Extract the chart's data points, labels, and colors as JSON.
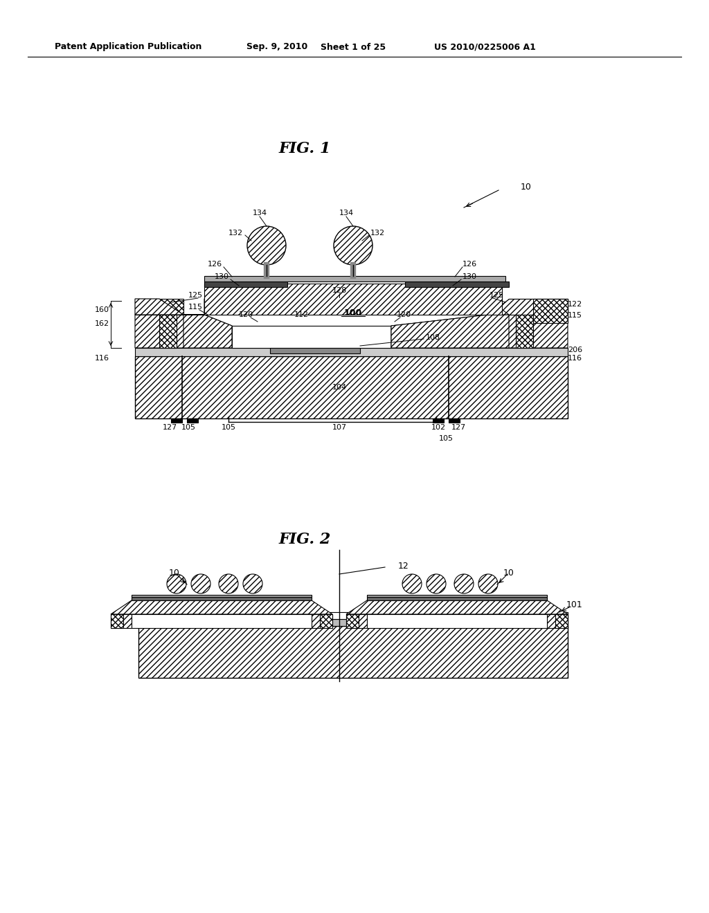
{
  "background_color": "#ffffff",
  "header_text": "Patent Application Publication",
  "header_date": "Sep. 9, 2010",
  "header_sheet": "Sheet 1 of 25",
  "header_patent": "US 2010/0225006 A1",
  "fig1_title": "FIG. 1",
  "fig2_title": "FIG. 2"
}
